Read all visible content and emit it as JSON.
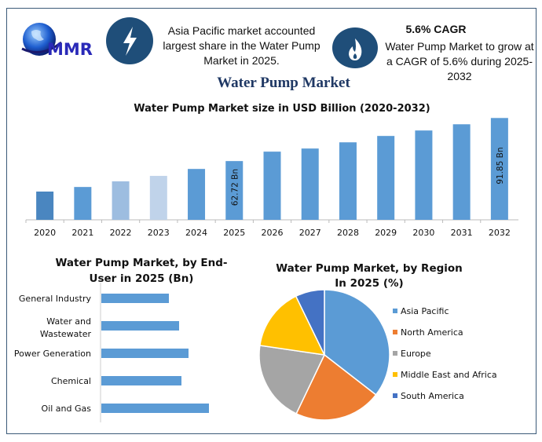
{
  "logo": {
    "text": "MMR"
  },
  "header": {
    "info1": "Asia Pacific market accounted largest share in the Water Pump Market in 2025.",
    "info1_icon": "lightning-icon",
    "cagr_title": "5.6% CAGR",
    "info2": "Water Pump Market to grow at a CAGR of 5.6% during 2025-2032",
    "info2_icon": "flame-icon",
    "title": "Water Pump Market"
  },
  "colors": {
    "icon_bg": "#1f4e79",
    "bar": "#5b9bd5",
    "title": "#1f3864"
  },
  "chart_data": [
    {
      "type": "bar",
      "title": "Water Pump Market size in USD Billion (2020-2032)",
      "categories": [
        "2020",
        "2021",
        "2022",
        "2023",
        "2024",
        "2025",
        "2026",
        "2027",
        "2028",
        "2029",
        "2030",
        "2031",
        "2032"
      ],
      "values": [
        42.1,
        45.2,
        49.0,
        52.7,
        57.4,
        62.72,
        69.1,
        71.2,
        75.4,
        79.7,
        83.4,
        87.6,
        91.85
      ],
      "bar_colors": [
        "#4a86c0",
        "#5b9bd5",
        "#9dbde0",
        "#c0d3ea",
        "#5b9bd5",
        "#5b9bd5",
        "#5b9bd5",
        "#5b9bd5",
        "#5b9bd5",
        "#5b9bd5",
        "#5b9bd5",
        "#5b9bd5",
        "#5b9bd5"
      ],
      "data_labels": {
        "2025": "62.72 Bn",
        "2032": "91.85 Bn"
      },
      "ylim": [
        23,
        92
      ],
      "grid": false
    },
    {
      "type": "bar",
      "orientation": "horizontal",
      "title": "Water Pump Market, by End-User in 2025 (Bn)",
      "categories": [
        "General Industry",
        "Water and Wastewater",
        "Power Generation",
        "Chemical",
        "Oil and Gas"
      ],
      "values": [
        8.6,
        9.9,
        11.1,
        10.2,
        13.7
      ],
      "color": "#5b9bd5",
      "grid": false
    },
    {
      "type": "pie",
      "title": "Water Pump Market, by Region In 2025 (%)",
      "categories": [
        "Asia Pacific",
        "North America",
        "Europe",
        "Middle East and Africa",
        "South America"
      ],
      "values": [
        35.5,
        21.6,
        20.2,
        15.5,
        7.2
      ],
      "colors": [
        "#5b9bd5",
        "#ed7d31",
        "#a5a5a5",
        "#ffc000",
        "#4472c4"
      ],
      "legend": "right"
    }
  ]
}
